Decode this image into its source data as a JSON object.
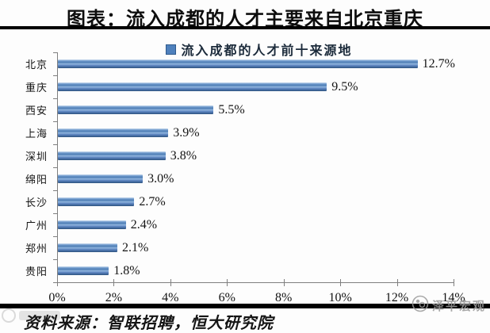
{
  "page": {
    "title": "图表：流入成都的人才主要来自北京重庆",
    "source": "资料来源：智联招聘，恒大研究院",
    "watermark_right": "泽平宏观"
  },
  "colors": {
    "bar_fill": "#4f81bd",
    "axis": "#7f7f7f",
    "rule": "#000000",
    "watermark": "#9a9a9a"
  },
  "chart_data": {
    "type": "bar",
    "orientation": "horizontal",
    "title": "图表：流入成都的人才主要来自北京重庆",
    "legend": [
      "流入成都的人才前十来源地"
    ],
    "legend_position": "top",
    "categories": [
      "北京",
      "重庆",
      "西安",
      "上海",
      "深圳",
      "绵阳",
      "长沙",
      "广州",
      "郑州",
      "贵阳"
    ],
    "values": [
      12.7,
      9.5,
      5.5,
      3.9,
      3.8,
      3.0,
      2.7,
      2.4,
      2.1,
      1.8
    ],
    "value_labels": [
      "12.7%",
      "9.5%",
      "5.5%",
      "3.9%",
      "3.8%",
      "3.0%",
      "2.7%",
      "2.4%",
      "2.1%",
      "1.8%"
    ],
    "xlim": [
      0,
      14
    ],
    "x_ticks": [
      "0%",
      "2%",
      "4%",
      "6%",
      "8%",
      "10%",
      "12%",
      "14%"
    ],
    "xlabel": "",
    "ylabel": "",
    "grid": false
  }
}
